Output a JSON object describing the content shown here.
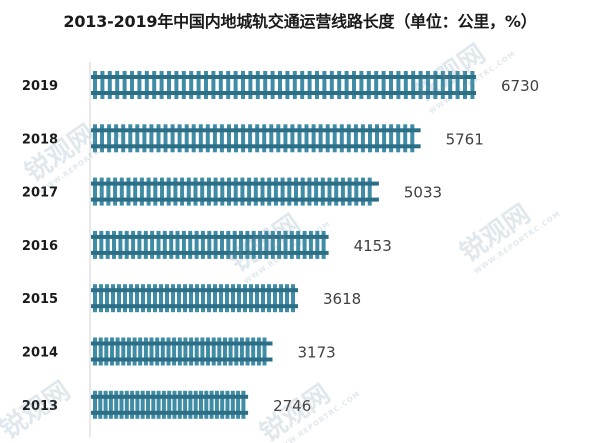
{
  "chart_data": {
    "type": "bar",
    "orientation": "horizontal",
    "title": "2013-2019年中国内地城轨交通运营线路长度（单位：公里，%）",
    "categories": [
      "2019",
      "2018",
      "2017",
      "2016",
      "2015",
      "2014",
      "2013"
    ],
    "values": [
      6730,
      5761,
      5033,
      4153,
      3618,
      3173,
      2746
    ],
    "data_labels": [
      "6730",
      "5761",
      "5033",
      "4153",
      "3618",
      "3173",
      "2746"
    ],
    "bar_style": "railway-track",
    "colors": {
      "rail": "#2c6e85",
      "sleeper": "#3f8ca6",
      "label": "#404040",
      "axis": "#d0d0d0"
    },
    "grid": false,
    "legend": "none"
  },
  "watermark": {
    "brand": "锐观网",
    "url": "WWW.REPORTRC.COM"
  }
}
